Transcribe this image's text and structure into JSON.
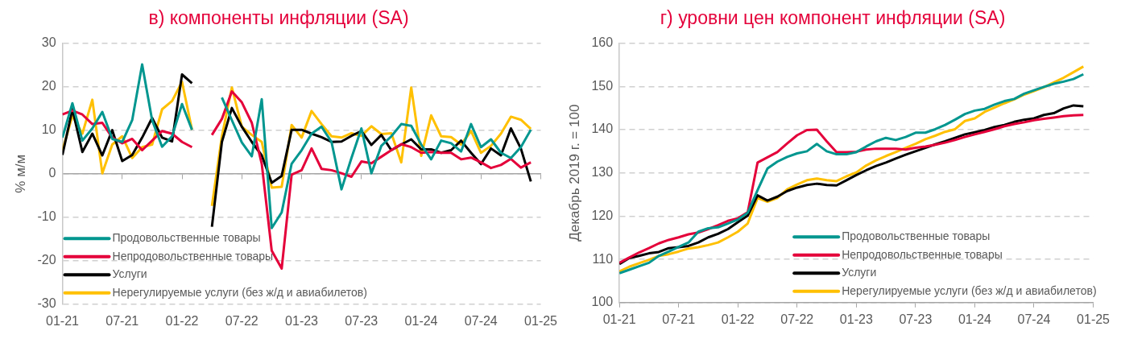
{
  "chart_data": [
    {
      "type": "line",
      "title": "в) компоненты инфляции (SA)",
      "ylabel": "% м/м",
      "x": [
        "2021-01",
        "2021-02",
        "2021-03",
        "2021-04",
        "2021-05",
        "2021-06",
        "2021-07",
        "2021-08",
        "2021-09",
        "2021-10",
        "2021-11",
        "2021-12",
        "2022-01",
        "2022-02",
        "2022-03",
        "2022-04",
        "2022-05",
        "2022-06",
        "2022-07",
        "2022-08",
        "2022-09",
        "2022-10",
        "2022-11",
        "2022-12",
        "2023-01",
        "2023-02",
        "2023-03",
        "2023-04",
        "2023-05",
        "2023-06",
        "2023-07",
        "2023-08",
        "2023-09",
        "2023-10",
        "2023-11",
        "2023-12",
        "2024-01",
        "2024-02",
        "2024-03",
        "2024-04",
        "2024-05",
        "2024-06",
        "2024-07",
        "2024-08",
        "2024-09",
        "2024-10",
        "2024-11",
        "2024-12"
      ],
      "xlim": [
        "2021-01",
        "2025-01"
      ],
      "xticks": [
        {
          "value": "2021-01",
          "label": "01-21"
        },
        {
          "value": "2021-07",
          "label": "07-21"
        },
        {
          "value": "2022-01",
          "label": "01-22"
        },
        {
          "value": "2022-07",
          "label": "07-22"
        },
        {
          "value": "2023-01",
          "label": "01-23"
        },
        {
          "value": "2023-07",
          "label": "07-23"
        },
        {
          "value": "2024-01",
          "label": "01-24"
        },
        {
          "value": "2024-07",
          "label": "07-24"
        },
        {
          "value": "2025-01",
          "label": "01-25"
        }
      ],
      "ylim": [
        -30,
        30
      ],
      "yticks": [
        -30,
        -20,
        -10,
        0,
        10,
        20,
        30
      ],
      "grid": "y",
      "legend": "bottom left",
      "series": [
        {
          "name": "Продовольственные товары",
          "color": "#00968f",
          "values": [
            8.3,
            16.2,
            7.6,
            10.4,
            14.2,
            8,
            7.3,
            12.3,
            25.1,
            12.3,
            6.2,
            8.6,
            16,
            10.1,
            null,
            null,
            17.5,
            12.3,
            7.2,
            4,
            17.1,
            -12.5,
            -8.9,
            2.3,
            5.4,
            9.2,
            10.8,
            7.3,
            -3.6,
            3.6,
            10.4,
            0.1,
            6.4,
            8.6,
            11.4,
            11,
            6.7,
            3.3,
            7.6,
            7,
            5.1,
            11.4,
            6.1,
            7.9,
            4.8,
            3.6,
            6.1,
            10.1
          ]
        },
        {
          "name": "Непродовольственные товары",
          "color": "#e4003a",
          "values": [
            13.6,
            14.5,
            13.6,
            11.4,
            11.7,
            8.3,
            7,
            8,
            5.4,
            7.6,
            9.8,
            9.2,
            7.3,
            6.1,
            null,
            8.9,
            12.6,
            18.9,
            16.4,
            11.7,
            2.3,
            -17.7,
            -21.8,
            -0.2,
            0.8,
            5.8,
            1.1,
            0.8,
            0.1,
            -0.7,
            2.8,
            2.4,
            3.9,
            5.4,
            6.8,
            6.1,
            4.8,
            5,
            4.8,
            4.8,
            3.3,
            3.7,
            2.6,
            1.3,
            2,
            3.4,
            1.4,
            2.6
          ]
        },
        {
          "name": "Услуги",
          "color": "#000000",
          "values": [
            4.3,
            14.8,
            5,
            9.2,
            4.2,
            10,
            2.9,
            4.3,
            8.3,
            12.8,
            8.3,
            7.4,
            22.8,
            20.8,
            null,
            -12.2,
            7.3,
            15.1,
            10.8,
            7.3,
            4.2,
            -2.1,
            -0.5,
            10.1,
            10.1,
            9.2,
            8.4,
            7.3,
            7.4,
            8.7,
            9.8,
            6.6,
            8.9,
            5.4,
            6.7,
            7.9,
            5.6,
            5.6,
            4.8,
            5.4,
            7.6,
            4.8,
            2.2,
            5.8,
            4.2,
            10.4,
            5.8,
            -1.8
          ]
        },
        {
          "name": "Нерегулируемые услуги (без ж/д и авиабилетов)",
          "color": "#ffc000",
          "values": [
            5.4,
            13.3,
            9.2,
            17,
            0.1,
            6.7,
            8.6,
            3.6,
            6.1,
            6.7,
            14.8,
            16.7,
            21.1,
            10.1,
            null,
            -7.4,
            8.6,
            19.8,
            10.8,
            8.9,
            7.3,
            -3.2,
            -3,
            11.2,
            8.3,
            14.4,
            11.4,
            8.6,
            8.3,
            9.3,
            8.7,
            10.9,
            9.1,
            9.3,
            2.6,
            19.8,
            4.1,
            13.4,
            8.6,
            8.4,
            6.7,
            9.8,
            4.8,
            6.4,
            9.2,
            13.1,
            12.4,
            10.3
          ]
        }
      ]
    },
    {
      "type": "line",
      "title": "г) уровни цен компонент инфляции (SA)",
      "ylabel": "Декабрь 2019 г. = 100",
      "x": [
        "2021-01",
        "2021-02",
        "2021-03",
        "2021-04",
        "2021-05",
        "2021-06",
        "2021-07",
        "2021-08",
        "2021-09",
        "2021-10",
        "2021-11",
        "2021-12",
        "2022-01",
        "2022-02",
        "2022-03",
        "2022-04",
        "2022-05",
        "2022-06",
        "2022-07",
        "2022-08",
        "2022-09",
        "2022-10",
        "2022-11",
        "2022-12",
        "2023-01",
        "2023-02",
        "2023-03",
        "2023-04",
        "2023-05",
        "2023-06",
        "2023-07",
        "2023-08",
        "2023-09",
        "2023-10",
        "2023-11",
        "2023-12",
        "2024-01",
        "2024-02",
        "2024-03",
        "2024-04",
        "2024-05",
        "2024-06",
        "2024-07",
        "2024-08",
        "2024-09",
        "2024-10",
        "2024-11",
        "2024-12"
      ],
      "xlim": [
        "2021-01",
        "2025-01"
      ],
      "xticks": [
        {
          "value": "2021-01",
          "label": "01-21"
        },
        {
          "value": "2021-07",
          "label": "07-21"
        },
        {
          "value": "2022-01",
          "label": "01-22"
        },
        {
          "value": "2022-07",
          "label": "07-22"
        },
        {
          "value": "2023-01",
          "label": "01-23"
        },
        {
          "value": "2023-07",
          "label": "07-23"
        },
        {
          "value": "2024-01",
          "label": "01-24"
        },
        {
          "value": "2024-07",
          "label": "07-24"
        },
        {
          "value": "2025-01",
          "label": "01-25"
        }
      ],
      "ylim": [
        100,
        160
      ],
      "yticks": [
        100,
        110,
        120,
        130,
        140,
        150,
        160
      ],
      "grid": "y",
      "legend": "bottom right",
      "series": [
        {
          "name": "Продовольственные товары",
          "color": "#00968f",
          "values": [
            106.8,
            107.6,
            108.4,
            109.2,
            110.8,
            111.8,
            112.9,
            113.9,
            116.4,
            117.2,
            117.4,
            118.3,
            119.2,
            120.8,
            126,
            131,
            132.6,
            133.7,
            134.5,
            135,
            136.7,
            135,
            134.3,
            134.3,
            134.8,
            136.1,
            137.3,
            138.1,
            137.6,
            138.3,
            139.3,
            139.3,
            140.1,
            141.1,
            142.3,
            143.6,
            144.4,
            144.8,
            145.8,
            146.6,
            147.1,
            148.3,
            149.1,
            149.9,
            150.6,
            151.1,
            151.7,
            152.8
          ]
        },
        {
          "name": "Непродовольственные товары",
          "color": "#e4003a",
          "values": [
            109.2,
            110.4,
            111.6,
            112.6,
            113.7,
            114.5,
            115.1,
            115.8,
            116.2,
            117,
            117.9,
            118.9,
            119.5,
            120.9,
            132.4,
            133.6,
            134.8,
            136.8,
            138.7,
            139.9,
            140,
            137.3,
            134.8,
            134.8,
            134.9,
            135.4,
            135.6,
            135.6,
            135.6,
            135.4,
            135.8,
            136.1,
            136.5,
            137,
            137.6,
            138.3,
            138.9,
            139.5,
            140.1,
            140.8,
            141.3,
            141.7,
            142.2,
            142.5,
            142.8,
            143.1,
            143.3,
            143.4
          ]
        },
        {
          "name": "Услуги",
          "color": "#000000",
          "values": [
            108.9,
            110.3,
            110.8,
            111.4,
            111.7,
            112.6,
            112.8,
            113.1,
            113.9,
            115.1,
            115.9,
            117,
            118.6,
            120.1,
            124.8,
            123.6,
            124.5,
            125.8,
            126.6,
            127.2,
            127.5,
            127.2,
            127.1,
            128.3,
            129.5,
            130.6,
            131.6,
            132.4,
            133.3,
            134.2,
            135,
            135.8,
            136.6,
            137.3,
            138.1,
            138.9,
            139.4,
            139.9,
            140.6,
            141.1,
            141.8,
            142.3,
            142.6,
            143.4,
            143.8,
            144.9,
            145.6,
            145.4
          ]
        },
        {
          "name": "Нерегулируемые услуги (без ж/д и авиабилетов)",
          "color": "#ffc000",
          "values": [
            107.2,
            108.3,
            109.1,
            109.9,
            110.8,
            111.2,
            111.8,
            112.5,
            112.8,
            113.3,
            113.9,
            115.1,
            116.4,
            118.3,
            124.2,
            123.3,
            124.2,
            126.2,
            127.3,
            128.3,
            128.7,
            128.3,
            128.1,
            129.2,
            130.1,
            131.7,
            132.9,
            133.9,
            134.8,
            135.8,
            136.7,
            137.8,
            138.6,
            139.5,
            140.1,
            142,
            142.6,
            144.1,
            145.1,
            146.1,
            147,
            148.1,
            148.9,
            149.8,
            150.9,
            152,
            153.3,
            154.6
          ]
        }
      ]
    }
  ]
}
